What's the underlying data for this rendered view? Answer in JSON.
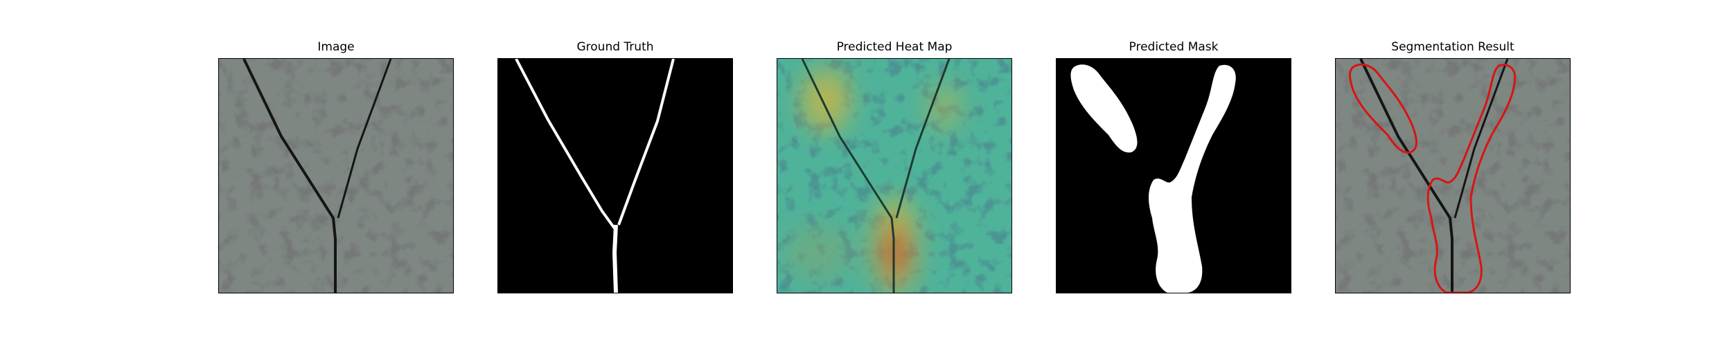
{
  "figure": {
    "panels": [
      {
        "title": "Image"
      },
      {
        "title": "Ground Truth"
      },
      {
        "title": "Predicted Heat Map"
      },
      {
        "title": "Predicted Mask"
      },
      {
        "title": "Segmentation Result"
      }
    ]
  },
  "colors": {
    "texture_base": "#7e8782",
    "texture_dark": "#2e302f",
    "mask_fg": "#ffffff",
    "mask_bg": "#000000",
    "contour": "#d81414",
    "heat_low": "#2aa7a0",
    "heat_mid": "#c8b54a",
    "heat_high": "#d2301e"
  }
}
